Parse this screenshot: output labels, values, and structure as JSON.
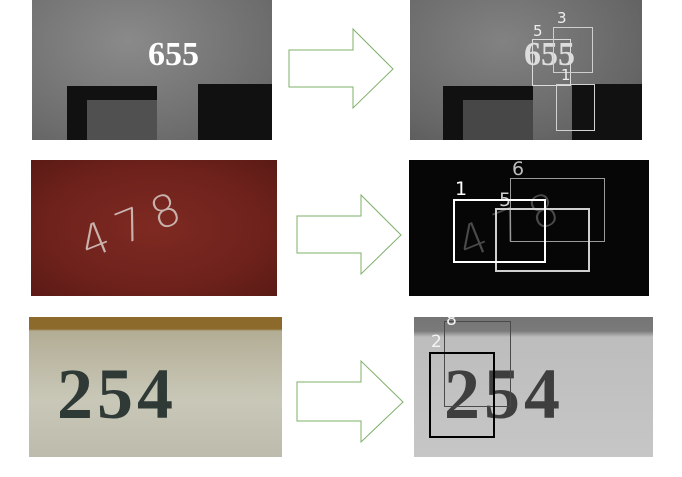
{
  "colors": {
    "arrow_stroke": "#7fb06a",
    "arrow_fill": "#ffffff"
  },
  "rows": [
    {
      "input": {
        "text": "655",
        "text_color": "#ffffff"
      },
      "output": {
        "text": "655",
        "text_color": "#dddddd",
        "box_color": "#dcdcdc",
        "boxes": [
          {
            "label": "5"
          },
          {
            "label": "3"
          },
          {
            "label": "1"
          }
        ]
      }
    },
    {
      "input": {
        "text": "478",
        "text_color": "#c9b2ad"
      },
      "output": {
        "text": "478",
        "text_color": "#4a4a4a",
        "boxes": [
          {
            "label": "1",
            "color": "#ffffff"
          },
          {
            "label": "5",
            "color": "#d0d0d0"
          },
          {
            "label": "6",
            "color": "#9a9a9a"
          }
        ]
      }
    },
    {
      "input": {
        "text": "254",
        "text_color": "#2f3a36"
      },
      "output": {
        "text": "254",
        "text_color": "#3e3e3e",
        "boxes": [
          {
            "label": "2",
            "color": "#000000"
          },
          {
            "label": "8",
            "color": "#4a4a4a"
          }
        ]
      }
    }
  ]
}
